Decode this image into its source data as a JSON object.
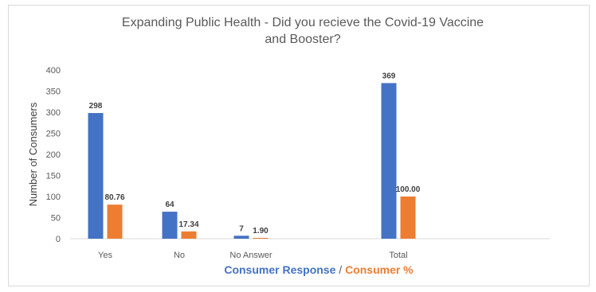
{
  "chart_data": {
    "type": "bar",
    "title_line1": "Expanding Public Health - Did you recieve the Covid-19 Vaccine",
    "title_line2": "and Booster?",
    "ylabel": "Number of Consumers",
    "xlabel_part1": "Consumer Response",
    "xlabel_separator": " / ",
    "xlabel_part2": "Consumer %",
    "categories": [
      "Yes",
      "No",
      "No Answer",
      "Total"
    ],
    "ylim": [
      0,
      400
    ],
    "yticks": [
      0,
      50,
      100,
      150,
      200,
      250,
      300,
      350,
      400
    ],
    "grid": false,
    "series": [
      {
        "values": [
          298,
          64,
          7,
          369
        ],
        "labels": [
          "298",
          "64",
          "7",
          "369"
        ],
        "color": "#4472c4"
      },
      {
        "values": [
          80.76,
          17.34,
          1.9,
          100.0
        ],
        "labels": [
          "80.76",
          "17.34",
          "1.90",
          "100.00"
        ],
        "color": "#ed7d31"
      }
    ]
  }
}
